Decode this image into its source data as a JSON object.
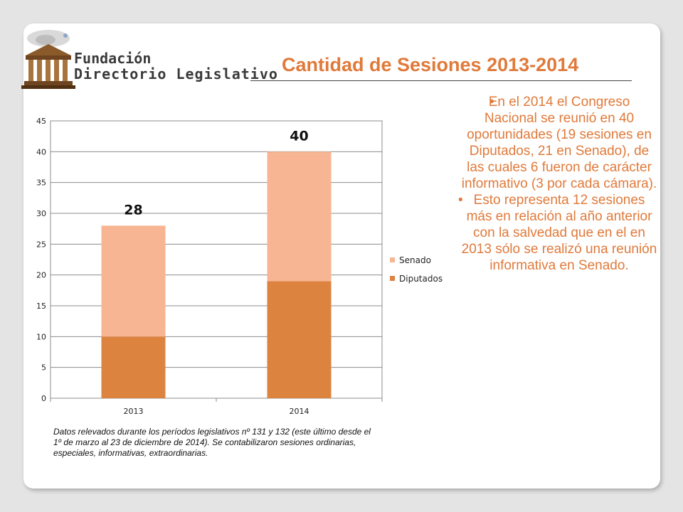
{
  "logo": {
    "line1": "Fundación",
    "line2": "Directorio Legislativo"
  },
  "title": "Cantidad de Sesiones 2013-2014",
  "bullets": [
    "En el 2014 el Congreso Nacional se reunió en 40 oportunidades (19 sesiones en Diputados, 21 en Senado), de las cuales 6 fueron de carácter informativo (3 por cada cámara).",
    "Esto representa 12 sesiones más en relación al año anterior con la salvedad que en el en 2013 sólo se realizó una reunión informativa en Senado."
  ],
  "note": "Datos relevados durante los períodos legislativos nº  131 y 132 (este último desde el 1º de marzo al 23 de diciembre de 2014). Se contabilizaron sesiones ordinarias, especiales, informativas, extraordinarias.",
  "colors": {
    "title": "#e07a3a",
    "senado": "#f7b593",
    "diputados": "#dd8340"
  },
  "chart_data": {
    "type": "bar",
    "stacked": true,
    "categories": [
      "2013",
      "2014"
    ],
    "series": [
      {
        "name": "Diputados",
        "values": [
          10,
          19
        ],
        "color": "#dd8340"
      },
      {
        "name": "Senado",
        "values": [
          18,
          21
        ],
        "color": "#f7b593"
      }
    ],
    "totals": [
      "28",
      "40"
    ],
    "ylim": [
      0,
      45
    ],
    "yticks": [
      "0",
      "5",
      "10",
      "15",
      "20",
      "25",
      "30",
      "35",
      "40",
      "45"
    ],
    "grid": true,
    "legend": "right",
    "legend_order": [
      "Senado",
      "Diputados"
    ]
  }
}
